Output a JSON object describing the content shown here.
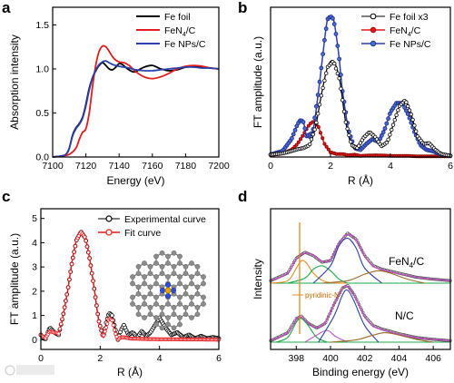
{
  "chart_data": [
    {
      "panel": "a",
      "type": "line",
      "xlabel": "Energy (eV)",
      "ylabel": "Absorption intensity",
      "xlim": [
        7100,
        7200
      ],
      "ylim": [
        0,
        1.7
      ],
      "xticks": [
        7100,
        7120,
        7140,
        7160,
        7180,
        7200
      ],
      "yticks": [
        0.0,
        0.5,
        1.0,
        1.5
      ],
      "legend_position": "top-right",
      "series": [
        {
          "name": "Fe foil",
          "color": "#000000",
          "x": [
            7100,
            7105,
            7108,
            7110,
            7112,
            7114,
            7116,
            7118,
            7120,
            7122,
            7124,
            7126,
            7128,
            7130,
            7132,
            7134,
            7136,
            7138,
            7140,
            7142,
            7145,
            7148,
            7150,
            7155,
            7160,
            7165,
            7170,
            7175,
            7180,
            7185,
            7190,
            7195,
            7200
          ],
          "y": [
            0.0,
            0.01,
            0.03,
            0.1,
            0.25,
            0.33,
            0.38,
            0.45,
            0.6,
            0.78,
            0.9,
            0.98,
            1.04,
            1.07,
            1.04,
            1.0,
            0.99,
            1.02,
            1.06,
            1.05,
            1.0,
            0.97,
            0.97,
            1.02,
            1.04,
            1.0,
            0.98,
            0.99,
            1.02,
            1.03,
            1.02,
            1.01,
            1.0
          ]
        },
        {
          "name": "FeN4/C",
          "color": "#e41a1c",
          "x": [
            7100,
            7105,
            7110,
            7114,
            7116,
            7118,
            7120,
            7122,
            7124,
            7126,
            7128,
            7130,
            7132,
            7134,
            7136,
            7138,
            7140,
            7143,
            7146,
            7150,
            7155,
            7160,
            7165,
            7170,
            7175,
            7180,
            7185,
            7190,
            7195,
            7200
          ],
          "y": [
            0.0,
            0.01,
            0.03,
            0.1,
            0.2,
            0.28,
            0.32,
            0.5,
            0.8,
            1.05,
            1.2,
            1.26,
            1.25,
            1.2,
            1.14,
            1.1,
            1.08,
            1.07,
            1.04,
            0.97,
            0.91,
            0.89,
            0.91,
            0.95,
            1.0,
            1.03,
            1.04,
            1.03,
            1.01,
            1.0
          ]
        },
        {
          "name": "Fe NPs/C",
          "color": "#2b3fa8",
          "x": [
            7100,
            7105,
            7108,
            7110,
            7112,
            7114,
            7116,
            7118,
            7120,
            7122,
            7124,
            7126,
            7128,
            7130,
            7132,
            7134,
            7136,
            7138,
            7140,
            7143,
            7146,
            7150,
            7155,
            7160,
            7165,
            7170,
            7175,
            7180,
            7185,
            7190,
            7195,
            7200
          ],
          "y": [
            0.0,
            0.01,
            0.03,
            0.1,
            0.24,
            0.32,
            0.37,
            0.44,
            0.58,
            0.76,
            0.9,
            0.99,
            1.05,
            1.08,
            1.09,
            1.07,
            1.05,
            1.04,
            1.03,
            1.02,
            1.01,
            0.99,
            0.98,
            0.98,
            0.99,
            1.0,
            1.01,
            1.02,
            1.02,
            1.01,
            1.01,
            1.0
          ]
        }
      ]
    },
    {
      "panel": "b",
      "type": "line",
      "xlabel": "R (Å)",
      "ylabel": "FT amplitude (a.u.)",
      "xlim": [
        0,
        6
      ],
      "ylim": [
        0,
        2.5
      ],
      "xticks": [
        0,
        2,
        4,
        6
      ],
      "legend_position": "top-right",
      "series": [
        {
          "name": "Fe foil x3",
          "color": "#000000",
          "x": [
            0.0,
            0.4,
            0.7,
            0.9,
            1.1,
            1.3,
            1.5,
            1.7,
            1.9,
            2.1,
            2.3,
            2.5,
            2.7,
            2.9,
            3.1,
            3.3,
            3.5,
            3.7,
            3.9,
            4.1,
            4.3,
            4.5,
            4.7,
            4.9,
            5.1,
            5.3,
            5.5,
            5.7,
            5.9,
            6.0
          ],
          "y": [
            0.04,
            0.06,
            0.1,
            0.13,
            0.15,
            0.2,
            0.5,
            1.05,
            1.5,
            1.6,
            1.3,
            0.6,
            0.2,
            0.15,
            0.32,
            0.42,
            0.33,
            0.18,
            0.25,
            0.55,
            0.85,
            0.95,
            0.7,
            0.35,
            0.22,
            0.23,
            0.12,
            0.05,
            0.03,
            0.02
          ]
        },
        {
          "name": "FeN4/C",
          "color": "#e41a1c",
          "x": [
            0.0,
            0.4,
            0.7,
            0.9,
            1.1,
            1.3,
            1.45,
            1.6,
            1.8,
            2.0,
            2.2,
            2.4,
            2.6,
            2.8,
            3.0,
            3.5,
            4.0,
            4.5,
            5.0,
            5.5,
            6.0
          ],
          "y": [
            0.03,
            0.06,
            0.12,
            0.22,
            0.38,
            0.55,
            0.6,
            0.5,
            0.22,
            0.08,
            0.05,
            0.05,
            0.03,
            0.04,
            0.02,
            0.03,
            0.02,
            0.02,
            0.01,
            0.01,
            0.01
          ]
        },
        {
          "name": "Fe NPs/C",
          "color": "#2b3fa8",
          "x": [
            0.0,
            0.4,
            0.7,
            0.9,
            1.0,
            1.1,
            1.2,
            1.4,
            1.6,
            1.8,
            1.9,
            2.0,
            2.1,
            2.2,
            2.3,
            2.4,
            2.6,
            2.8,
            3.0,
            3.2,
            3.4,
            3.6,
            3.8,
            4.0,
            4.2,
            4.4,
            4.6,
            4.8,
            5.0,
            5.2,
            5.4,
            5.6,
            5.8,
            6.0
          ],
          "y": [
            0.04,
            0.1,
            0.3,
            0.55,
            0.62,
            0.58,
            0.35,
            0.4,
            1.1,
            1.95,
            2.3,
            2.35,
            2.3,
            2.0,
            1.6,
            1.1,
            0.45,
            0.15,
            0.12,
            0.22,
            0.3,
            0.25,
            0.45,
            0.75,
            0.9,
            0.9,
            0.7,
            0.42,
            0.2,
            0.12,
            0.1,
            0.06,
            0.03,
            0.02
          ]
        }
      ]
    },
    {
      "panel": "c",
      "type": "line",
      "xlabel": "R (Å)",
      "ylabel": "FT amplitude (a.u.)",
      "xlim": [
        0,
        6
      ],
      "ylim": [
        -0.4,
        5.4
      ],
      "xticks": [
        0,
        2,
        4,
        6
      ],
      "yticks": [
        0,
        1,
        2,
        3,
        4,
        5
      ],
      "legend_position": "top-left",
      "series": [
        {
          "name": "Experimental curve",
          "color": "#000000",
          "x": [
            0.0,
            0.15,
            0.3,
            0.45,
            0.6,
            0.75,
            0.9,
            1.05,
            1.2,
            1.35,
            1.5,
            1.65,
            1.8,
            1.95,
            2.1,
            2.2,
            2.3,
            2.4,
            2.5,
            2.6,
            2.7,
            2.8,
            2.95,
            3.1,
            3.25,
            3.4,
            3.55,
            3.7,
            3.85,
            4.0,
            4.2,
            4.4,
            4.6,
            4.8,
            5.0,
            5.2,
            5.4,
            5.6,
            5.8,
            6.0
          ],
          "y": [
            0.2,
            0.0,
            0.5,
            0.3,
            0.2,
            1.0,
            2.0,
            3.2,
            4.1,
            4.45,
            4.2,
            3.3,
            2.1,
            0.8,
            0.1,
            0.7,
            1.1,
            1.0,
            0.5,
            0.0,
            0.4,
            0.6,
            0.2,
            0.3,
            0.1,
            0.35,
            0.15,
            0.3,
            0.6,
            0.9,
            0.5,
            0.2,
            0.3,
            0.1,
            0.2,
            0.05,
            0.15,
            0.05,
            0.1,
            0.05
          ]
        },
        {
          "name": "Fit curve",
          "color": "#e41a1c",
          "x": [
            0.0,
            0.15,
            0.3,
            0.45,
            0.6,
            0.75,
            0.9,
            1.05,
            1.2,
            1.35,
            1.5,
            1.65,
            1.8,
            1.95,
            2.1,
            2.2,
            2.3,
            2.4,
            2.5,
            2.6,
            2.7,
            2.8,
            3.0,
            3.5,
            4.0,
            4.5,
            5.0,
            5.5,
            6.0
          ],
          "y": [
            0.2,
            0.05,
            0.35,
            0.3,
            0.25,
            1.0,
            2.0,
            3.2,
            4.1,
            4.45,
            4.2,
            3.3,
            2.1,
            0.8,
            0.1,
            0.5,
            0.9,
            0.8,
            0.3,
            0.0,
            0.1,
            0.1,
            0.05,
            0.03,
            0.02,
            0.02,
            0.01,
            0.01,
            0.0
          ]
        }
      ]
    },
    {
      "panel": "d",
      "type": "line",
      "xlabel": "Binding energy (eV)",
      "ylabel": "Intensity",
      "xlim": [
        396.5,
        407
      ],
      "xticks": [
        398,
        400,
        402,
        404,
        406
      ],
      "annotations": [
        "FeN4/C",
        "N/C",
        "pyridinic-N"
      ],
      "groups": [
        {
          "name": "FeN4/C",
          "components": [
            {
              "role": "data",
              "color": "#555555",
              "x": [
                396.5,
                397.5,
                398.0,
                398.5,
                399.0,
                399.5,
                400.0,
                400.5,
                401.0,
                401.5,
                402.0,
                402.5,
                403.0,
                404.0,
                405.0,
                406.0,
                407.0
              ],
              "y": [
                0.05,
                0.2,
                0.5,
                0.62,
                0.55,
                0.42,
                0.45,
                0.8,
                1.0,
                0.88,
                0.55,
                0.35,
                0.28,
                0.2,
                0.12,
                0.08,
                0.05
              ]
            },
            {
              "role": "fit",
              "color": "#c050c0",
              "x": [
                396.5,
                397.5,
                398.0,
                398.5,
                399.0,
                399.5,
                400.0,
                400.5,
                401.0,
                401.5,
                402.0,
                402.5,
                403.0,
                404.0,
                405.0,
                406.0,
                407.0
              ],
              "y": [
                0.05,
                0.2,
                0.48,
                0.6,
                0.56,
                0.44,
                0.47,
                0.8,
                0.98,
                0.86,
                0.54,
                0.34,
                0.27,
                0.19,
                0.12,
                0.08,
                0.05
              ]
            },
            {
              "role": "component",
              "color": "#e08a1a",
              "x": [
                396.5,
                397.5,
                398.0,
                398.3,
                398.6,
                399.0,
                399.5,
                400.0,
                401.0
              ],
              "y": [
                0.0,
                0.05,
                0.3,
                0.45,
                0.4,
                0.2,
                0.06,
                0.01,
                0.0
              ]
            },
            {
              "role": "component",
              "color": "#1fa84a",
              "x": [
                397.5,
                398.5,
                399.0,
                399.5,
                400.0,
                400.5,
                401.0
              ],
              "y": [
                0.0,
                0.1,
                0.28,
                0.35,
                0.25,
                0.08,
                0.0
              ]
            },
            {
              "role": "component",
              "color": "#2b3fa8",
              "x": [
                399.0,
                400.0,
                400.5,
                401.0,
                401.5,
                402.0,
                403.0
              ],
              "y": [
                0.0,
                0.35,
                0.75,
                0.9,
                0.7,
                0.3,
                0.0
              ]
            },
            {
              "role": "component",
              "color": "#9b6b2a",
              "x": [
                399.5,
                401.0,
                402.0,
                402.8,
                403.5,
                404.5,
                405.5
              ],
              "y": [
                0.0,
                0.05,
                0.18,
                0.25,
                0.2,
                0.08,
                0.0
              ]
            }
          ]
        },
        {
          "name": "N/C",
          "components": [
            {
              "role": "data",
              "color": "#555555",
              "x": [
                396.5,
                397.5,
                398.0,
                398.3,
                398.7,
                399.2,
                399.7,
                400.2,
                400.7,
                401.0,
                401.4,
                402.0,
                402.5,
                403.0,
                404.0,
                405.0,
                406.0,
                407.0
              ],
              "y": [
                0.03,
                0.2,
                0.5,
                0.55,
                0.4,
                0.3,
                0.4,
                0.8,
                1.15,
                1.2,
                1.0,
                0.55,
                0.35,
                0.28,
                0.18,
                0.1,
                0.06,
                0.03
              ]
            },
            {
              "role": "fit",
              "color": "#c050c0",
              "x": [
                396.5,
                397.5,
                398.0,
                398.3,
                398.7,
                399.2,
                399.7,
                400.2,
                400.7,
                401.0,
                401.4,
                402.0,
                402.5,
                403.0,
                404.0,
                405.0,
                406.0,
                407.0
              ],
              "y": [
                0.03,
                0.2,
                0.48,
                0.53,
                0.4,
                0.31,
                0.42,
                0.8,
                1.13,
                1.18,
                0.98,
                0.54,
                0.34,
                0.27,
                0.17,
                0.1,
                0.06,
                0.03
              ]
            },
            {
              "role": "component",
              "color": "#1fa84a",
              "x": [
                396.8,
                397.5,
                398.0,
                398.3,
                398.7,
                399.2,
                399.8
              ],
              "y": [
                0.0,
                0.1,
                0.42,
                0.5,
                0.35,
                0.1,
                0.0
              ]
            },
            {
              "role": "component",
              "color": "#c050c0",
              "x": [
                398.5,
                399.2,
                399.8,
                400.3,
                401.0
              ],
              "y": [
                0.0,
                0.15,
                0.25,
                0.12,
                0.0
              ]
            },
            {
              "role": "component",
              "color": "#2b3fa8",
              "x": [
                399.3,
                400.2,
                400.7,
                401.0,
                401.4,
                402.0,
                402.8
              ],
              "y": [
                0.0,
                0.55,
                1.0,
                1.1,
                0.85,
                0.35,
                0.0
              ]
            },
            {
              "role": "component",
              "color": "#9b6b2a",
              "x": [
                400.0,
                401.5,
                402.5,
                403.2,
                404.0,
                405.0,
                406.0
              ],
              "y": [
                0.0,
                0.05,
                0.15,
                0.2,
                0.15,
                0.06,
                0.0
              ]
            }
          ]
        }
      ]
    }
  ]
}
